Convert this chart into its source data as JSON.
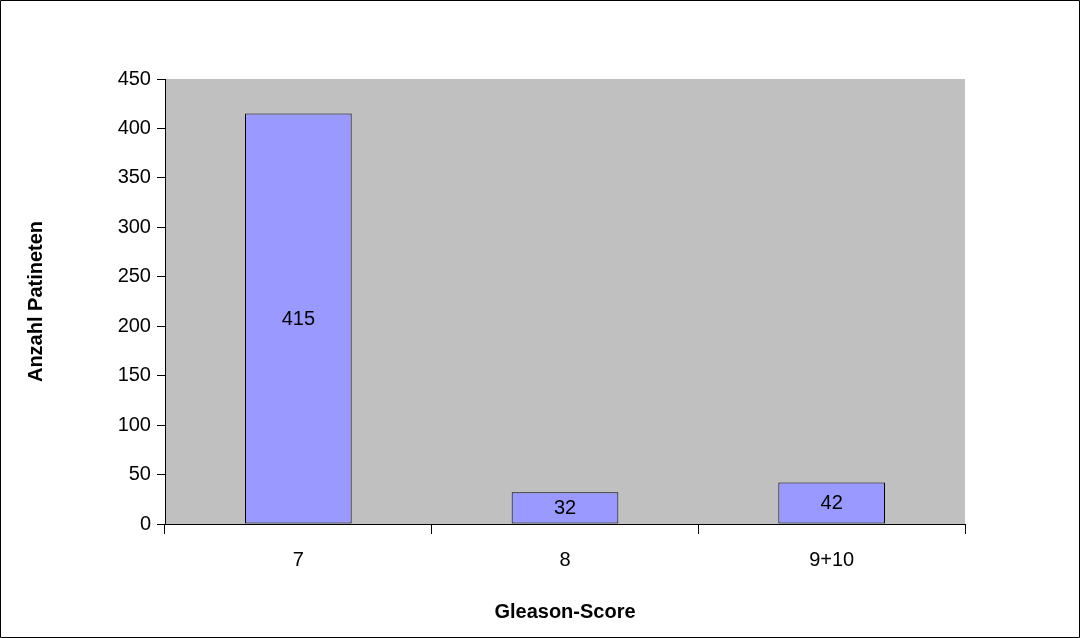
{
  "chart_data": {
    "type": "bar",
    "xlabel": "Gleason-Score",
    "ylabel": "Anzahl Patineten",
    "categories": [
      "7",
      "8",
      "9+10"
    ],
    "values": [
      415,
      32,
      42
    ],
    "color": "#9999ff",
    "ylim": [
      0,
      450
    ],
    "yticks": [
      0,
      50,
      100,
      150,
      200,
      250,
      300,
      350,
      400,
      450
    ],
    "grid": false,
    "legend": false,
    "data_labels": true
  }
}
